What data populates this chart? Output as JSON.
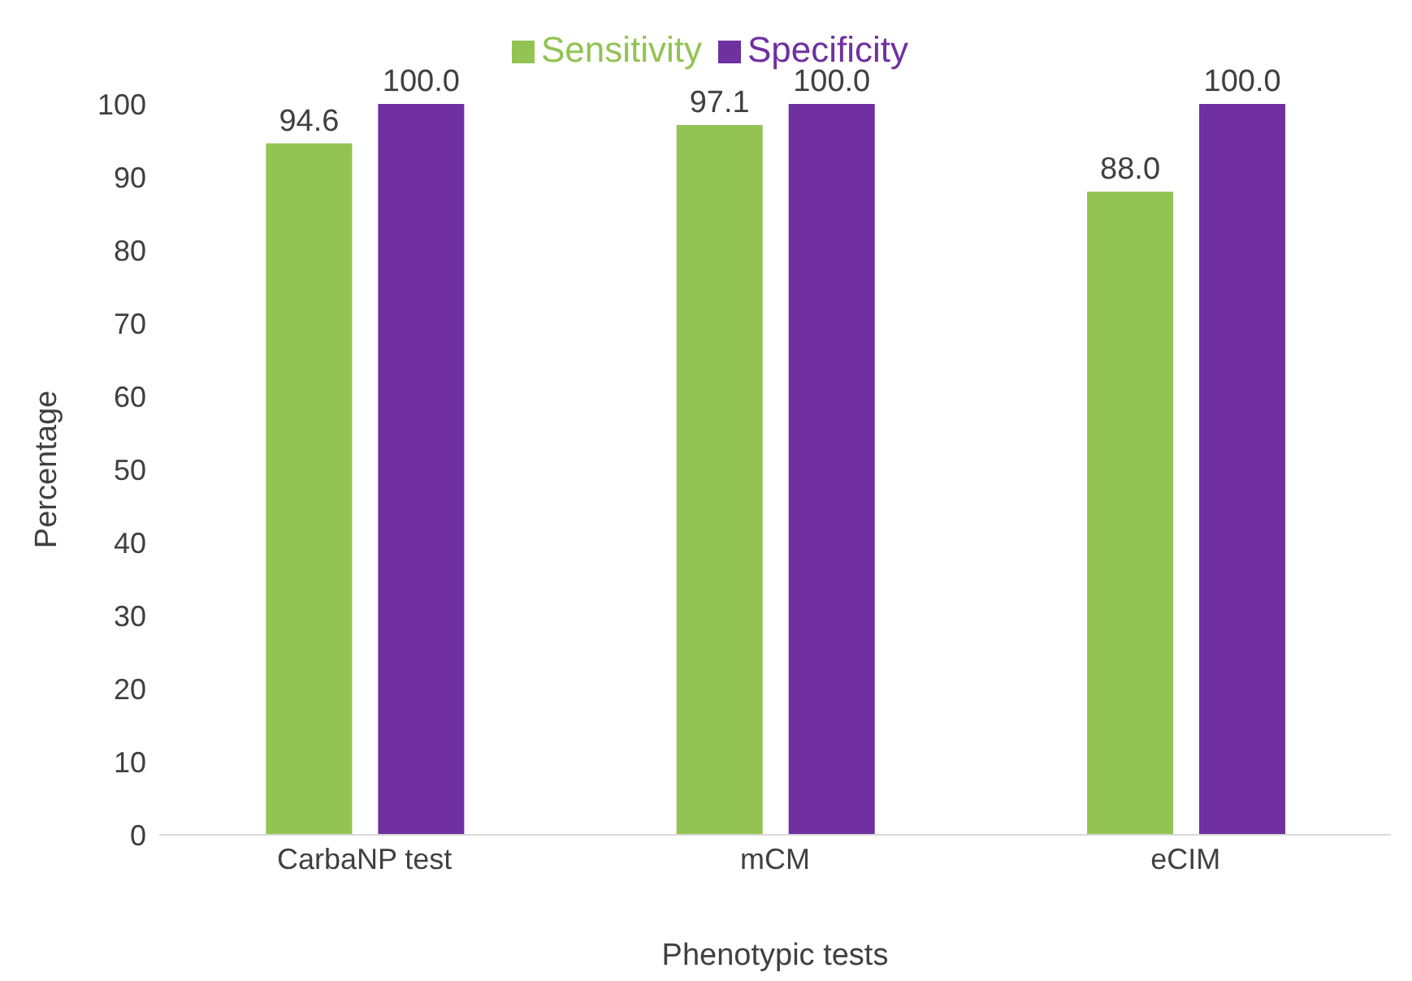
{
  "chart_data": {
    "type": "bar",
    "xlabel": "Phenotypic tests",
    "ylabel": "Percentage",
    "categories": [
      "CarbaNP test",
      "mCM",
      "eCIM"
    ],
    "series": [
      {
        "name": "Sensitivity",
        "color": "#92c353",
        "values": [
          94.6,
          97.1,
          88.0
        ],
        "value_labels": [
          "94.6",
          "97.1",
          "88.0"
        ]
      },
      {
        "name": "Specificity",
        "color": "#7030a0",
        "values": [
          100.0,
          100.0,
          100.0
        ],
        "value_labels": [
          "100.0",
          "100.0",
          "100.0"
        ]
      }
    ],
    "ylim": [
      0,
      100
    ],
    "yticks": [
      0,
      10,
      20,
      30,
      40,
      50,
      60,
      70,
      80,
      90,
      100
    ],
    "grid": false,
    "legend": "top"
  }
}
